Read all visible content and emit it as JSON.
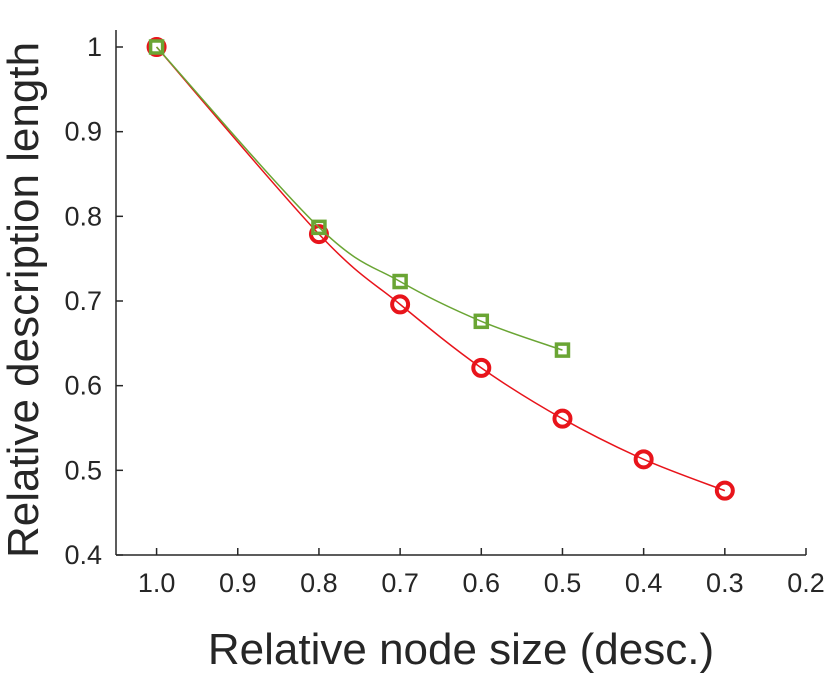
{
  "chart_data": {
    "type": "line",
    "title": "",
    "xlabel": "Relative node size (desc.)",
    "ylabel": "Relative description length",
    "xlim": [
      1.05,
      0.2
    ],
    "ylim": [
      0.4,
      1.0
    ],
    "x_reversed": true,
    "x_ticks": [
      1.0,
      0.9,
      0.8,
      0.7,
      0.6,
      0.5,
      0.4,
      0.3,
      0.2
    ],
    "x_tick_labels": [
      "1.0",
      "0.9",
      "0.8",
      "0.7",
      "0.6",
      "0.5",
      "0.4",
      "0.3",
      "0.2"
    ],
    "y_ticks": [
      0.4,
      0.5,
      0.6,
      0.7,
      0.8,
      0.9,
      1.0
    ],
    "y_tick_labels": [
      "0.4",
      "0.5",
      "0.6",
      "0.7",
      "0.8",
      "0.9",
      "1"
    ],
    "grid": false,
    "legend": "none",
    "series": [
      {
        "color": "#e8141b",
        "marker": "circle",
        "x": [
          1.0,
          0.8,
          0.7,
          0.6,
          0.5,
          0.4,
          0.3
        ],
        "y": [
          1.0,
          0.779,
          0.696,
          0.621,
          0.561,
          0.513,
          0.476
        ]
      },
      {
        "color": "#6aa534",
        "marker": "square",
        "x": [
          1.0,
          0.8,
          0.7,
          0.6,
          0.5
        ],
        "y": [
          1.0,
          0.787,
          0.723,
          0.676,
          0.642
        ]
      }
    ]
  }
}
